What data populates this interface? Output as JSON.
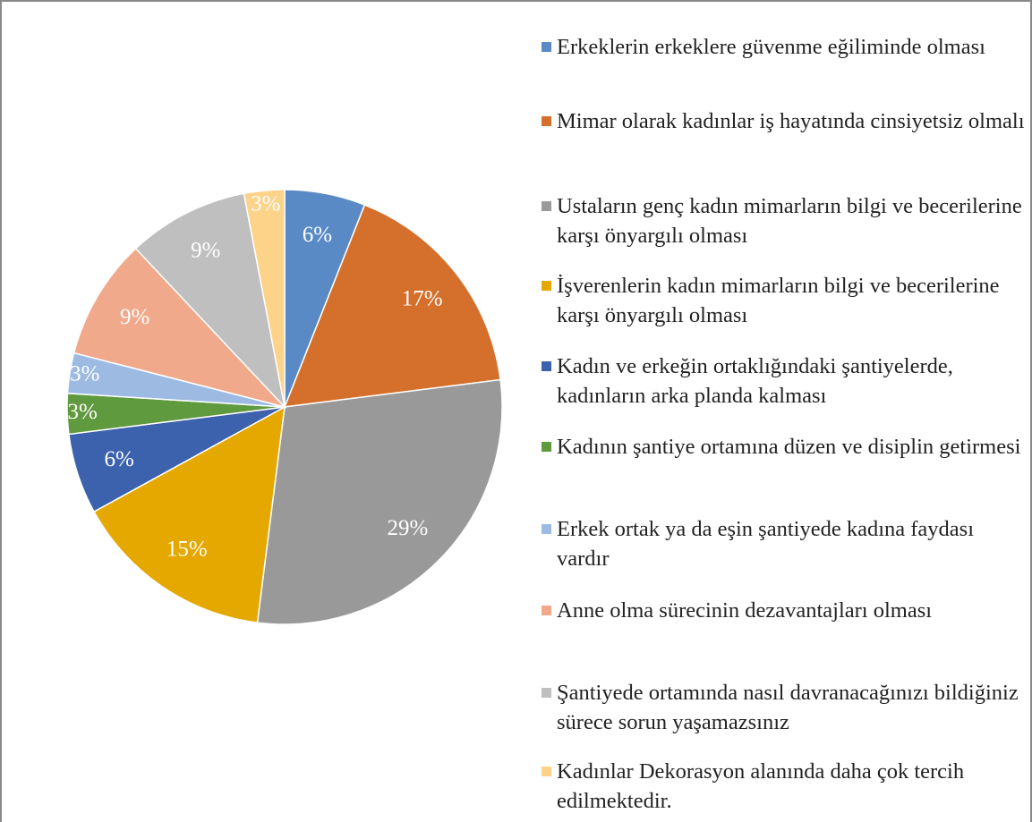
{
  "chart_data": {
    "type": "pie",
    "categories": [
      "Erkeklerin erkeklere güvenme eğiliminde olması",
      "Mimar olarak kadınlar iş hayatında cinsiyetsiz olmalı",
      "Ustaların genç kadın mimarların bilgi ve becerilerine karşı önyargılı olması",
      "İşverenlerin kadın mimarların bilgi ve becerilerine karşı önyargılı olması",
      "Kadın ve erkeğin ortaklığındaki şantiyelerde, kadınların arka planda kalması",
      "Kadının şantiye ortamına düzen ve disiplin getirmesi",
      "Erkek ortak ya da eşin şantiyede kadına faydası vardır",
      "Anne olma sürecinin dezavantajları olması",
      "Şantiyede ortamında nasıl davranacağınızı bildiğiniz sürece sorun yaşamazsınız",
      "Kadınlar Dekorasyon alanında daha çok tercih edilmektedir."
    ],
    "values": [
      6,
      17,
      29,
      15,
      6,
      3,
      3,
      9,
      9,
      3
    ],
    "value_labels": [
      "6%",
      "17%",
      "29%",
      "15%",
      "6%",
      "3%",
      "3%",
      "9%",
      "9%",
      "3%"
    ],
    "colors": [
      "#5a8ac6",
      "#d5702c",
      "#999999",
      "#e4a800",
      "#3c62ae",
      "#5f9a3f",
      "#9dbbe2",
      "#f0a98b",
      "#bfbfbf",
      "#fdd38a"
    ],
    "legend": "right"
  }
}
